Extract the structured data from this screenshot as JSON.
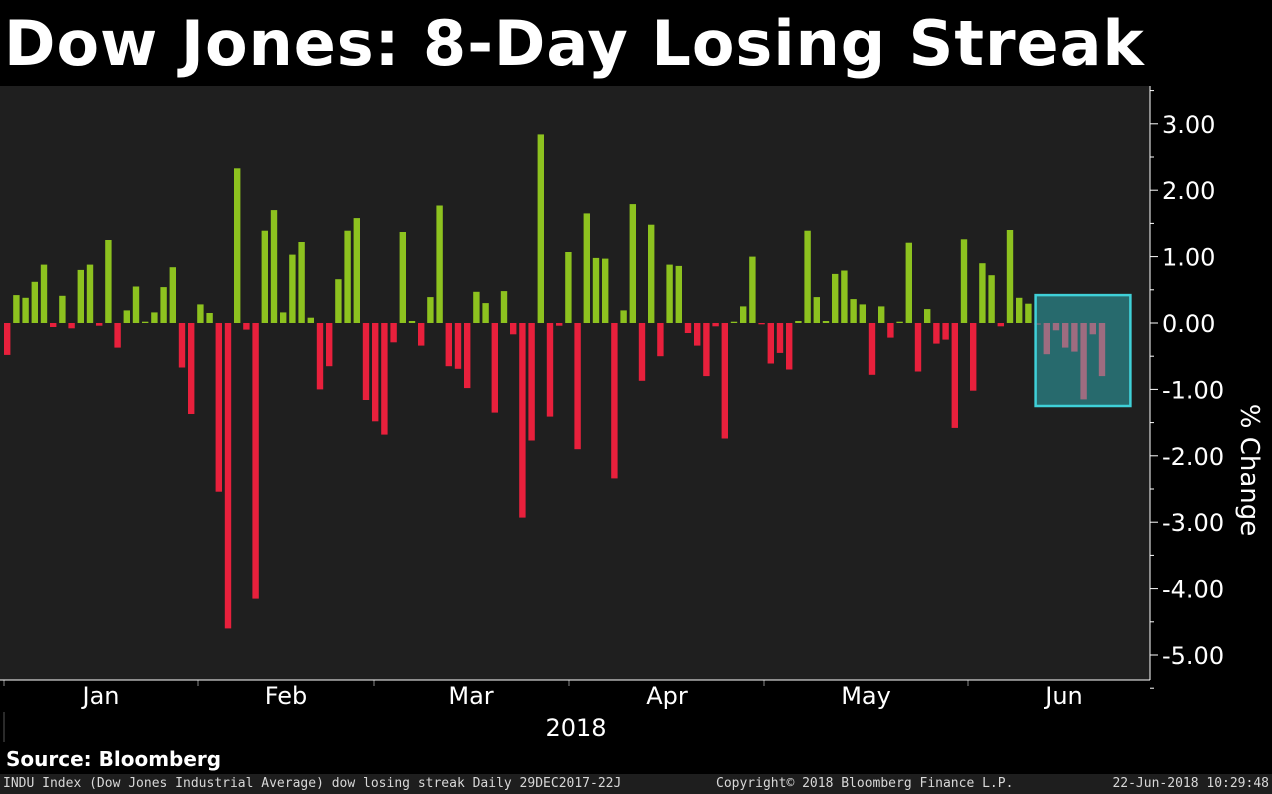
{
  "title": "Dow Jones: 8-Day Losing Streak",
  "source": "Source: Bloomberg",
  "footer": {
    "left": "INDU Index (Dow Jones Industrial Average) dow losing streak  Daily 29DEC2017-22J",
    "center": "Copyright© 2018 Bloomberg Finance L.P.",
    "right": "22-Jun-2018 10:29:48"
  },
  "colors": {
    "up": "#8dc21f",
    "down": "#e8203c",
    "streak": "#9e6c80",
    "highlight_fill": "#2b8a8f",
    "highlight_border": "#3fd0d8",
    "plot_bg": "#1f1f1f"
  },
  "chart_data": {
    "type": "bar",
    "ylabel": "% Change",
    "xlabel": "2018",
    "ylim": [
      -5.4,
      3.55
    ],
    "yticks": [
      3,
      2,
      1,
      0,
      -1,
      -2,
      -3,
      -4,
      -5
    ],
    "ytick_labels": [
      "3.00",
      "2.00",
      "1.00",
      "0.00",
      "-1.00",
      "-2.00",
      "-3.00",
      "-4.00",
      "-5.00"
    ],
    "month_labels": [
      "Jan",
      "Feb",
      "Mar",
      "Apr",
      "May",
      "Jun"
    ],
    "values": [
      -0.48,
      0.42,
      0.38,
      0.62,
      0.88,
      -0.06,
      0.41,
      -0.08,
      0.8,
      0.88,
      -0.04,
      1.25,
      -0.37,
      0.19,
      0.55,
      0.02,
      0.16,
      0.54,
      0.84,
      -0.67,
      -1.37,
      0.28,
      0.15,
      -2.54,
      -4.6,
      2.33,
      -0.1,
      -4.15,
      1.39,
      1.7,
      0.16,
      1.03,
      1.22,
      0.08,
      -1.0,
      -0.65,
      0.66,
      1.39,
      1.58,
      -1.16,
      -1.48,
      -1.68,
      -0.29,
      1.37,
      0.03,
      -0.34,
      0.39,
      1.77,
      -0.65,
      -0.69,
      -0.98,
      0.47,
      0.3,
      -1.35,
      0.48,
      -0.17,
      -2.93,
      -1.77,
      2.84,
      -1.41,
      -0.04,
      1.07,
      -1.9,
      1.65,
      0.98,
      0.97,
      -2.34,
      0.19,
      1.79,
      -0.87,
      1.48,
      -0.5,
      0.88,
      0.86,
      -0.15,
      -0.34,
      -0.8,
      -0.05,
      -1.74,
      0.02,
      0.25,
      1.0,
      -0.02,
      -0.61,
      -0.45,
      -0.7,
      0.03,
      1.39,
      0.39,
      0.03,
      0.74,
      0.79,
      0.36,
      0.28,
      -0.78,
      0.25,
      -0.22,
      0.02,
      1.21,
      -0.73,
      0.21,
      -0.31,
      -0.25,
      -1.58,
      1.26,
      -1.02,
      0.9,
      0.72,
      -0.05,
      1.4,
      0.38,
      0.29,
      -0.03,
      -0.47,
      -0.11,
      -0.37,
      -0.43,
      -1.15,
      -0.17,
      -0.8
    ],
    "highlight": {
      "start_index": 113,
      "end_index": 120
    }
  }
}
